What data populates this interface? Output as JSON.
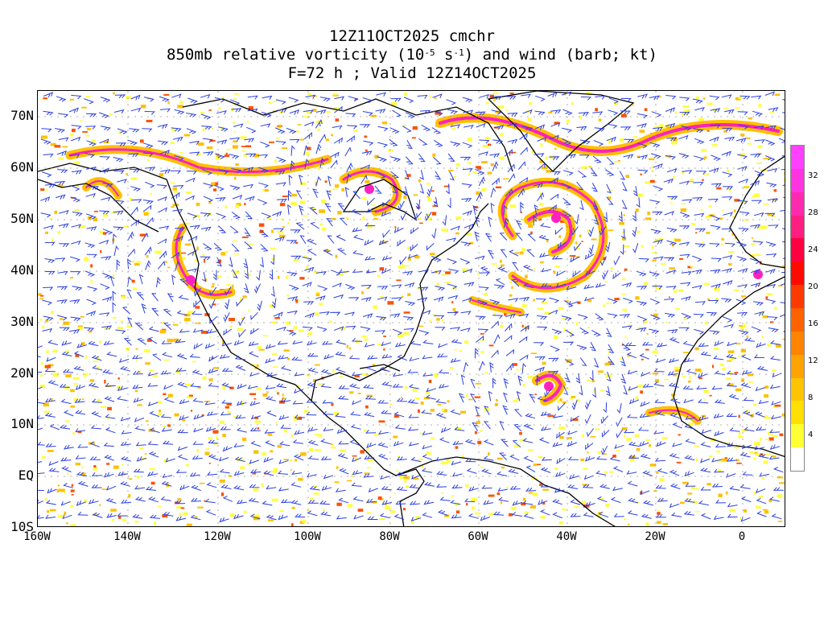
{
  "title": {
    "line1": "12Z11OCT2025 cmchr",
    "line2_pre": "850mb relative vorticity (10",
    "line2_exp1": "-5",
    "line2_mid": " s",
    "line2_exp2": "-1",
    "line2_post": ") and wind (barb; kt)",
    "line3": "F=72 h ; Valid 12Z14OCT2025"
  },
  "lat_labels": [
    "70N",
    "60N",
    "50N",
    "40N",
    "30N",
    "20N",
    "10N",
    "EQ",
    "10S"
  ],
  "lon_labels": [
    "160W",
    "140W",
    "120W",
    "100W",
    "80W",
    "60W",
    "40W",
    "20W",
    "0"
  ],
  "colorbar": {
    "labels": [
      "4",
      "8",
      "12",
      "16",
      "20",
      "24",
      "28",
      "32"
    ],
    "colors": [
      "#ffffff",
      "#ffff33",
      "#ffe000",
      "#ffc400",
      "#ffa300",
      "#ff8400",
      "#ff6200",
      "#ff3a00",
      "#ff0a00",
      "#ff0040",
      "#ff1f80",
      "#ff2ab0",
      "#ff33e0",
      "#ff40ff"
    ]
  },
  "map_colors": {
    "coast": "#000000",
    "barb": "#2b3fe0",
    "vort_low": "#ffff40",
    "vort_mid": "#ffc000",
    "vort_high": "#ff5000",
    "vort_max": "#ff20c0"
  }
}
